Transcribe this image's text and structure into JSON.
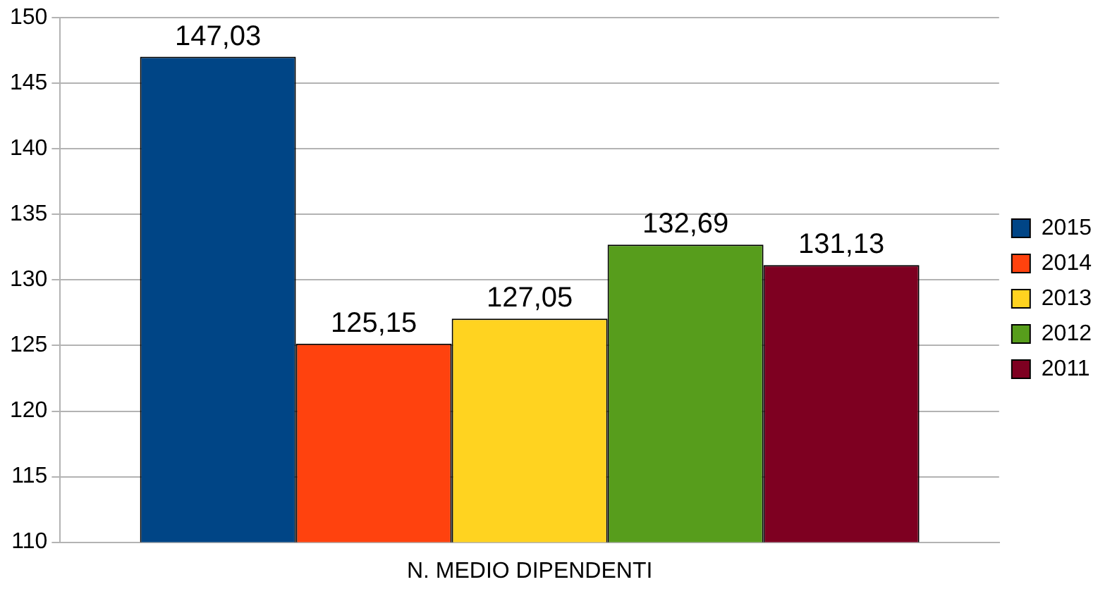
{
  "chart_data": {
    "type": "bar",
    "categories": [
      "N. MEDIO DIPENDENTI"
    ],
    "series": [
      {
        "name": "2015",
        "color": "#004586",
        "values": [
          147.03
        ],
        "value_labels": [
          "147,03"
        ]
      },
      {
        "name": "2014",
        "color": "#ff420e",
        "values": [
          125.15
        ],
        "value_labels": [
          "125,15"
        ]
      },
      {
        "name": "2013",
        "color": "#ffd320",
        "values": [
          127.05
        ],
        "value_labels": [
          "127,05"
        ]
      },
      {
        "name": "2012",
        "color": "#579d1c",
        "values": [
          132.69
        ],
        "value_labels": [
          "132,69"
        ]
      },
      {
        "name": "2011",
        "color": "#7e0021",
        "values": [
          131.13
        ],
        "value_labels": [
          "131,13"
        ]
      }
    ],
    "ylim": [
      110,
      150
    ],
    "yticks": [
      110,
      115,
      120,
      125,
      130,
      135,
      140,
      145,
      150
    ],
    "grid": "y",
    "legend": "right"
  }
}
